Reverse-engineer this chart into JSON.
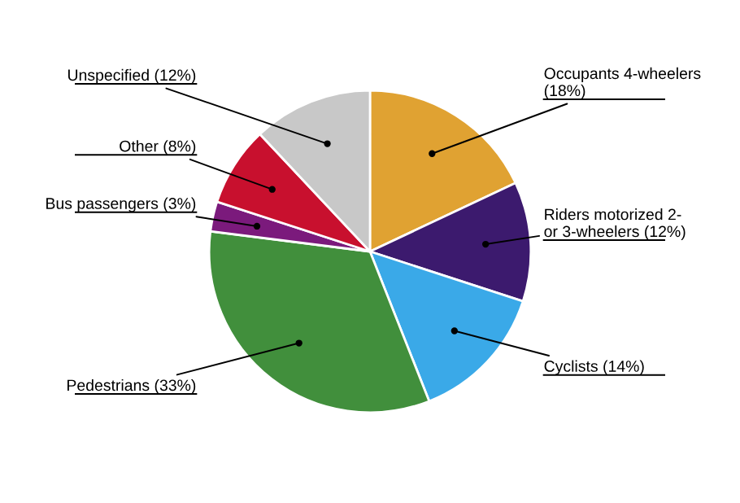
{
  "chart_data": {
    "type": "pie",
    "categories": [
      "Occupants 4-wheelers (18%)",
      "Riders motorized 2- or 3-wheelers (12%)",
      "Cyclists (14%)",
      "Pedestrians (33%)",
      "Bus passengers (3%)",
      "Other (8%)",
      "Unspecified (12%)"
    ],
    "values": [
      18,
      12,
      14,
      33,
      3,
      8,
      12
    ],
    "colors": [
      "#e0a232",
      "#3c1a6e",
      "#3aa9e8",
      "#418f3c",
      "#7b1a7c",
      "#c8102e",
      "#c8c8c8"
    ]
  }
}
